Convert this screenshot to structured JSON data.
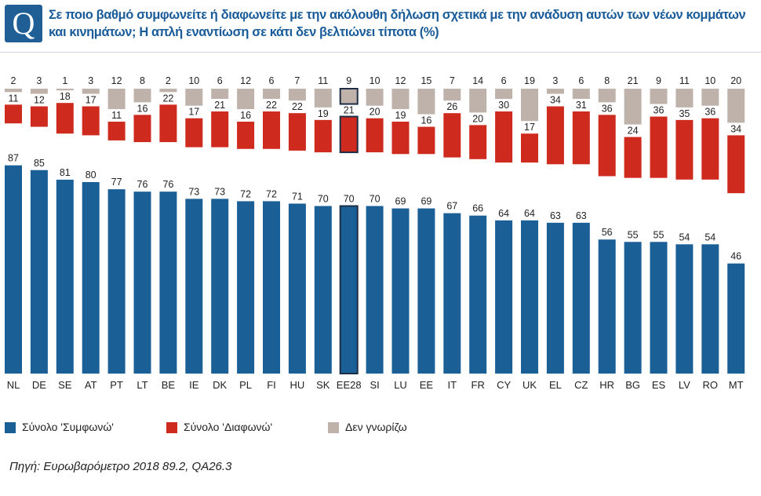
{
  "header": {
    "badge": "Q",
    "title": "Σε ποιο βαθμό συμφωνείτε ή διαφωνείτε με την ακόλουθη δήλωση σχετικά με την ανάδυση αυτών των νέων κομμάτων και κινημάτων; Η απλή εναντίωση σε κάτι δεν βελτιώνει τίποτα (%)"
  },
  "colors": {
    "agree": "#1b5f97",
    "disagree": "#cf2a1e",
    "dontknow": "#bfb2ab",
    "highlight_border": "#1c2d44"
  },
  "legend": {
    "agree": "Σύνολο 'Συμφωνώ'",
    "disagree": "Σύνολο 'Διαφωνώ'",
    "dontknow": "Δεν γνωρίζω"
  },
  "source": "Πηγή: Ευρωβαρόμετρο 2018 89.2, QA26.3",
  "chart_data": {
    "type": "bar",
    "stacking": "separate-stacked",
    "categories": [
      "NL",
      "DE",
      "SE",
      "AT",
      "PT",
      "LT",
      "BE",
      "IE",
      "DK",
      "PL",
      "FI",
      "HU",
      "SK",
      "EE28",
      "SI",
      "LU",
      "EE",
      "IT",
      "FR",
      "CY",
      "UK",
      "EL",
      "CZ",
      "HR",
      "BG",
      "ES",
      "LV",
      "RO",
      "MT"
    ],
    "highlight": "EE28",
    "series": [
      {
        "name": "Σύνολο 'Συμφωνώ'",
        "key": "agree",
        "values": [
          87,
          85,
          81,
          80,
          77,
          76,
          76,
          73,
          73,
          72,
          72,
          71,
          70,
          70,
          70,
          69,
          69,
          67,
          66,
          64,
          64,
          63,
          63,
          56,
          55,
          55,
          54,
          54,
          46
        ]
      },
      {
        "name": "Σύνολο 'Διαφωνώ'",
        "key": "disagree",
        "values": [
          11,
          12,
          18,
          17,
          11,
          16,
          22,
          17,
          21,
          16,
          22,
          22,
          19,
          21,
          20,
          19,
          16,
          26,
          20,
          30,
          17,
          34,
          31,
          36,
          24,
          36,
          35,
          36,
          34
        ]
      },
      {
        "name": "Δεν γνωρίζω",
        "key": "dontknow",
        "values": [
          2,
          3,
          1,
          3,
          12,
          8,
          2,
          10,
          6,
          12,
          6,
          7,
          11,
          9,
          10,
          12,
          15,
          7,
          14,
          6,
          19,
          3,
          6,
          8,
          21,
          9,
          11,
          10,
          20
        ]
      }
    ]
  }
}
